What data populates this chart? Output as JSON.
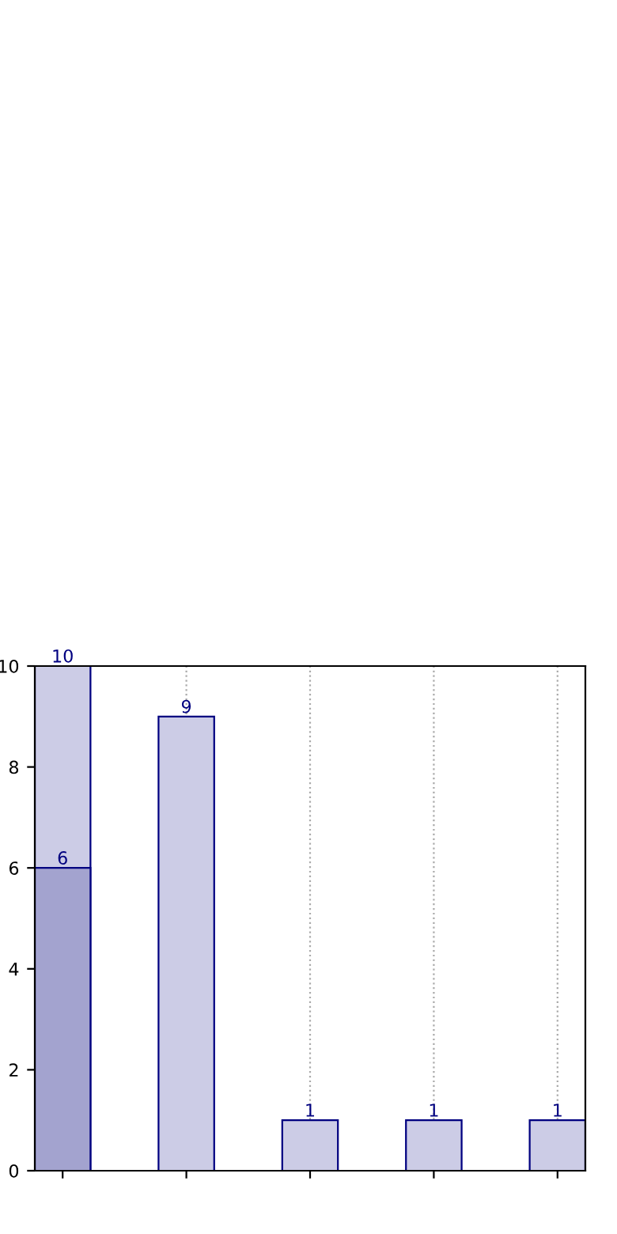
{
  "chart_data": {
    "type": "bar",
    "categories": [
      null,
      null,
      null,
      null,
      null
    ],
    "series": [
      {
        "color": "#ccccE6",
        "values": [
          10,
          9,
          1,
          1,
          1
        ]
      },
      {
        "color": "#a3a3cf",
        "values": [
          6,
          null,
          null,
          null,
          null
        ]
      }
    ],
    "data_labels": true,
    "ylim": [
      0,
      10
    ],
    "yticks": [
      0,
      2,
      4,
      6,
      8,
      10
    ],
    "grid": "x",
    "tick_labels": "y"
  }
}
